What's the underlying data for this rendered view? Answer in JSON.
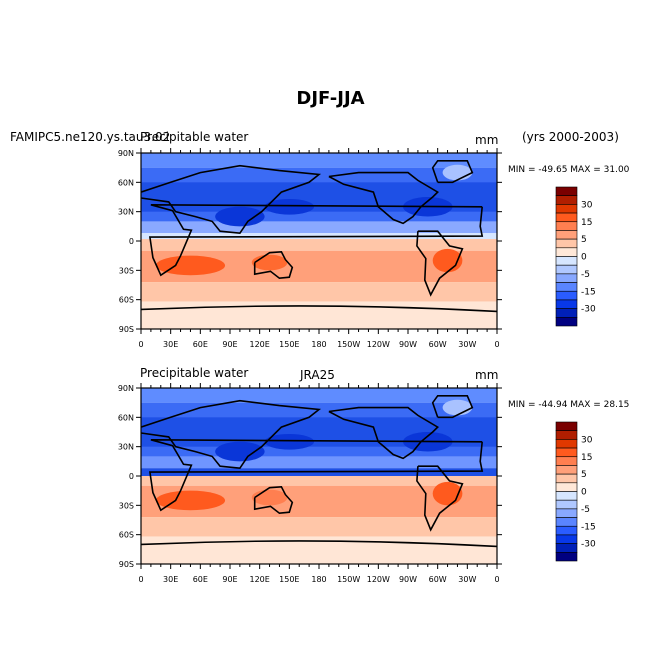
{
  "figure_title": "DJF-JJA",
  "chart_data": [
    {
      "type": "heatmap",
      "map": true,
      "left_title": "FAMIPC5.ne120.ys.tau3 Precipitable water",
      "left_title_a": "FAMIPC5.ne120.ys.tau3.02",
      "left_title_b": "Precipitable water",
      "center_title": "",
      "units": "mm",
      "years": "(yrs 2000-2003)",
      "stats": "MIN = -49.65 MAX =  31.00",
      "min": -49.65,
      "max": 31.0,
      "bands": [
        {
          "lat": [
            75,
            90
          ],
          "color": "#5f8cff"
        },
        {
          "lat": [
            20,
            75
          ],
          "color": "#3b6bf5"
        },
        {
          "lat": [
            30,
            60
          ],
          "color": "#1e50e6"
        },
        {
          "lat": [
            8,
            20
          ],
          "color": "#8aa9ff"
        },
        {
          "lat": [
            2,
            8
          ],
          "color": "#d6e6ff"
        },
        {
          "lat": [
            -10,
            2
          ],
          "color": "#ffc6a8"
        },
        {
          "lat": [
            -42,
            -10
          ],
          "color": "#ffa07a"
        },
        {
          "lat": [
            -62,
            -42
          ],
          "color": "#ffc6a8"
        },
        {
          "lat": [
            -90,
            -62
          ],
          "color": "#ffe6d6"
        }
      ],
      "blobs": [
        {
          "lon": 50,
          "lat": -25,
          "rlon": 35,
          "rlat": 10,
          "color": "#ff5a1e"
        },
        {
          "lon": 130,
          "lat": -22,
          "rlon": 18,
          "rlat": 8,
          "color": "#ff6a30"
        },
        {
          "lon": 310,
          "lat": -20,
          "rlon": 15,
          "rlat": 12,
          "color": "#ff5a1e"
        },
        {
          "lon": 100,
          "lat": 25,
          "rlon": 25,
          "rlat": 10,
          "color": "#0a36d8"
        },
        {
          "lon": 150,
          "lat": 35,
          "rlon": 25,
          "rlat": 8,
          "color": "#0a36d8"
        },
        {
          "lon": 290,
          "lat": 35,
          "rlon": 25,
          "rlat": 10,
          "color": "#0a36d8"
        },
        {
          "lon": 320,
          "lat": 70,
          "rlon": 15,
          "rlat": 8,
          "color": "#a9c2ff"
        }
      ]
    },
    {
      "type": "heatmap",
      "map": true,
      "left_title": "Precipitable water",
      "center_title": "JRA25",
      "units": "mm",
      "stats": "MIN = -44.94 MAX =  28.15",
      "min": -44.94,
      "max": 28.15,
      "bands": [
        {
          "lat": [
            75,
            90
          ],
          "color": "#5f8cff"
        },
        {
          "lat": [
            20,
            75
          ],
          "color": "#3b6bf5"
        },
        {
          "lat": [
            30,
            60
          ],
          "color": "#1e50e6"
        },
        {
          "lat": [
            8,
            20
          ],
          "color": "#6f95ff"
        },
        {
          "lat": [
            0,
            8
          ],
          "color": "#1e50e6"
        },
        {
          "lat": [
            -10,
            0
          ],
          "color": "#ffc6a8"
        },
        {
          "lat": [
            -42,
            -10
          ],
          "color": "#ffa07a"
        },
        {
          "lat": [
            -62,
            -42
          ],
          "color": "#ffc6a8"
        },
        {
          "lat": [
            -90,
            -62
          ],
          "color": "#ffe6d6"
        }
      ],
      "blobs": [
        {
          "lon": 50,
          "lat": -25,
          "rlon": 35,
          "rlat": 10,
          "color": "#ff5a1e"
        },
        {
          "lon": 130,
          "lat": -22,
          "rlon": 18,
          "rlat": 8,
          "color": "#ff7f50"
        },
        {
          "lon": 310,
          "lat": -18,
          "rlon": 15,
          "rlat": 12,
          "color": "#ff5a1e"
        },
        {
          "lon": 100,
          "lat": 25,
          "rlon": 25,
          "rlat": 10,
          "color": "#0a36d8"
        },
        {
          "lon": 150,
          "lat": 35,
          "rlon": 25,
          "rlat": 8,
          "color": "#0a36d8"
        },
        {
          "lon": 290,
          "lat": 35,
          "rlon": 25,
          "rlat": 10,
          "color": "#0a36d8"
        },
        {
          "lon": 320,
          "lat": 70,
          "rlon": 15,
          "rlat": 8,
          "color": "#a9c2ff"
        }
      ]
    }
  ],
  "axes": {
    "lat_ticks": [
      "90N",
      "60N",
      "30N",
      "0",
      "30S",
      "60S",
      "90S"
    ],
    "lon_ticks": [
      "0",
      "30E",
      "60E",
      "90E",
      "120E",
      "150E",
      "180",
      "150W",
      "120W",
      "90W",
      "60W",
      "30W",
      "0"
    ]
  },
  "colorbar": {
    "colors": [
      "#7a0000",
      "#b01e00",
      "#e03800",
      "#ff5a1e",
      "#ff7f50",
      "#ffa07a",
      "#ffc6a8",
      "#ffe8d8",
      "#d6e6ff",
      "#b0c8ff",
      "#88a8ff",
      "#5a85ff",
      "#2a5cff",
      "#0838e8",
      "#0020b8",
      "#000080"
    ],
    "labels": [
      "30",
      "15",
      "5",
      "0",
      "-5",
      "-15",
      "-30"
    ]
  }
}
